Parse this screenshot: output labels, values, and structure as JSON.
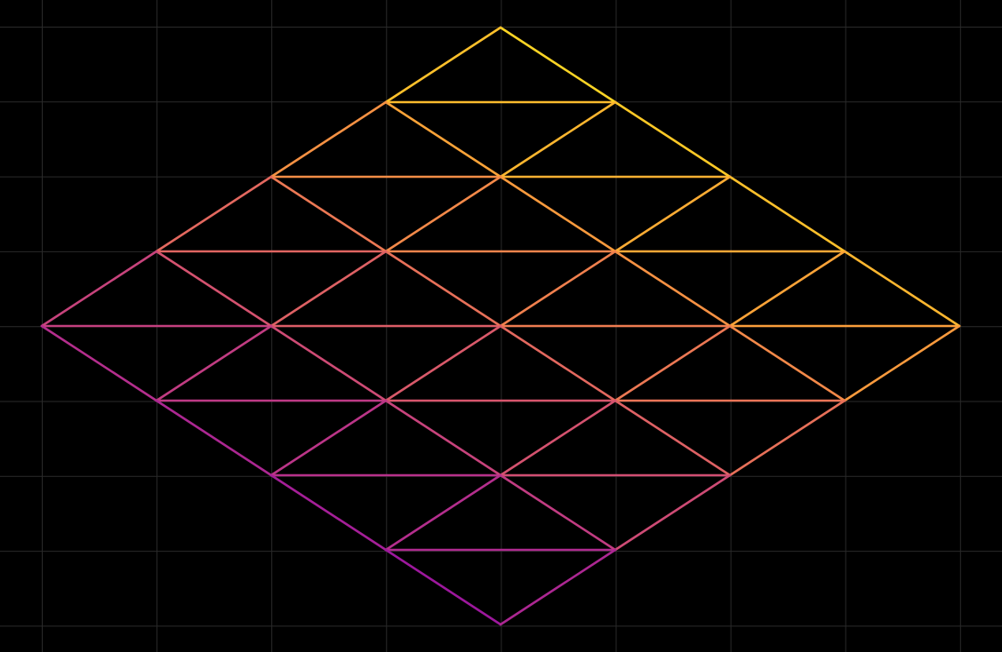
{
  "canvas": {
    "background": "#000000",
    "grid_color": "#2a2a2a",
    "grid": true
  },
  "lattice": {
    "description_levels": 8,
    "rows": [
      {
        "i": 0,
        "first": 4,
        "last": 4
      },
      {
        "i": 1,
        "first": 3,
        "last": 5
      },
      {
        "i": 2,
        "first": 2,
        "last": 6
      },
      {
        "i": 3,
        "first": 1,
        "last": 7
      },
      {
        "i": 4,
        "first": 0,
        "last": 8
      },
      {
        "i": 5,
        "first": 1,
        "last": 7
      },
      {
        "i": 6,
        "first": 2,
        "last": 6
      },
      {
        "i": 7,
        "first": 3,
        "last": 5
      },
      {
        "i": 8,
        "first": 4,
        "last": 4
      }
    ],
    "colormap": "plasma",
    "colormap_stops": [
      "#0d0887",
      "#46039f",
      "#7201a8",
      "#9c179e",
      "#bd3786",
      "#d8576b",
      "#ed7953",
      "#fb9f3a",
      "#fdca26",
      "#f0f921"
    ]
  }
}
